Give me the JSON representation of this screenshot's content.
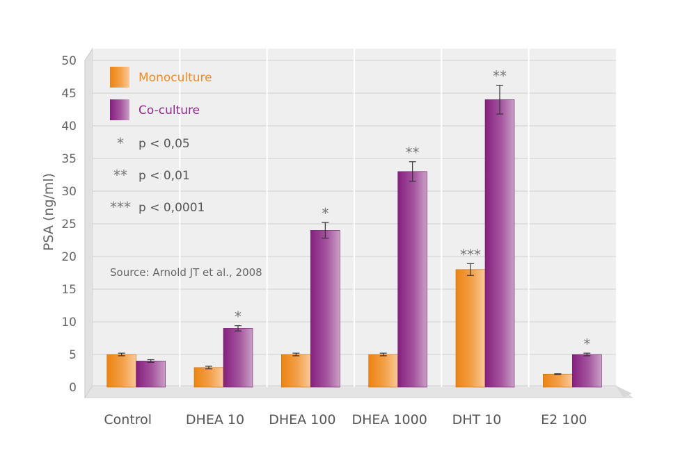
{
  "chart_data": {
    "type": "bar",
    "ylabel": "PSA (ng/ml)",
    "ylim": [
      0,
      50
    ],
    "yticks": [
      0,
      5,
      10,
      15,
      20,
      25,
      30,
      35,
      40,
      45,
      50
    ],
    "grid": true,
    "categories": [
      "Control",
      "DHEA 10",
      "DHEA 100",
      "DHEA 1000",
      "DHT 10",
      "E2 100"
    ],
    "series": [
      {
        "name": "Monoculture",
        "color": "#f08a1e",
        "values": [
          5,
          3,
          5,
          5,
          18,
          2
        ],
        "errors": [
          0.2,
          0.2,
          0.2,
          0.2,
          0.9,
          0.05
        ],
        "significance": [
          "",
          "",
          "",
          "",
          "***",
          ""
        ]
      },
      {
        "name": "Co-culture",
        "color": "#8e2a8c",
        "values": [
          4,
          9,
          24,
          33,
          44,
          5
        ],
        "errors": [
          0.2,
          0.4,
          1.2,
          1.5,
          2.2,
          0.2
        ],
        "significance": [
          "",
          "*",
          "*",
          "**",
          "**",
          "*"
        ]
      }
    ],
    "legend_placement": "top-left",
    "significance_legend": [
      {
        "symbol": "*",
        "text": "p < 0,05"
      },
      {
        "symbol": "**",
        "text": "p < 0,01"
      },
      {
        "symbol": "***",
        "text": "p < 0,0001"
      }
    ],
    "source_note": "Source: Arnold JT et al., 2008"
  }
}
